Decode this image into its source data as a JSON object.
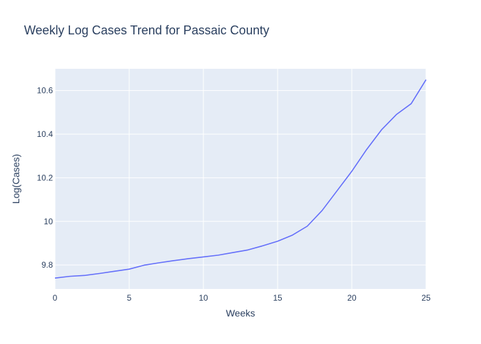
{
  "chart_data": {
    "type": "line",
    "title": "Weekly Log Cases Trend for Passaic County",
    "xlabel": "Weeks",
    "ylabel": "Log(Cases)",
    "xlim": [
      0,
      25
    ],
    "ylim": [
      9.69,
      10.7
    ],
    "x_ticks": [
      0,
      5,
      10,
      15,
      20,
      25
    ],
    "x_tick_labels": [
      "0",
      "5",
      "10",
      "15",
      "20",
      "25"
    ],
    "y_ticks": [
      9.8,
      10.0,
      10.2,
      10.4,
      10.6
    ],
    "y_tick_labels": [
      "9.8",
      "10",
      "10.2",
      "10.4",
      "10.6"
    ],
    "grid": true,
    "plot_background": "#e5ecf6",
    "series": [
      {
        "color": "#636efa",
        "x": [
          0,
          1,
          2,
          3,
          4,
          5,
          6,
          7,
          8,
          9,
          10,
          11,
          12,
          13,
          14,
          15,
          16,
          17,
          18,
          19,
          20,
          21,
          22,
          23,
          24,
          25
        ],
        "values": [
          9.74,
          9.748,
          9.752,
          9.761,
          9.771,
          9.781,
          9.799,
          9.81,
          9.82,
          9.829,
          9.837,
          9.845,
          9.857,
          9.869,
          9.888,
          9.909,
          9.937,
          9.978,
          10.05,
          10.14,
          10.23,
          10.33,
          10.42,
          10.49,
          10.54,
          10.65
        ]
      }
    ]
  }
}
